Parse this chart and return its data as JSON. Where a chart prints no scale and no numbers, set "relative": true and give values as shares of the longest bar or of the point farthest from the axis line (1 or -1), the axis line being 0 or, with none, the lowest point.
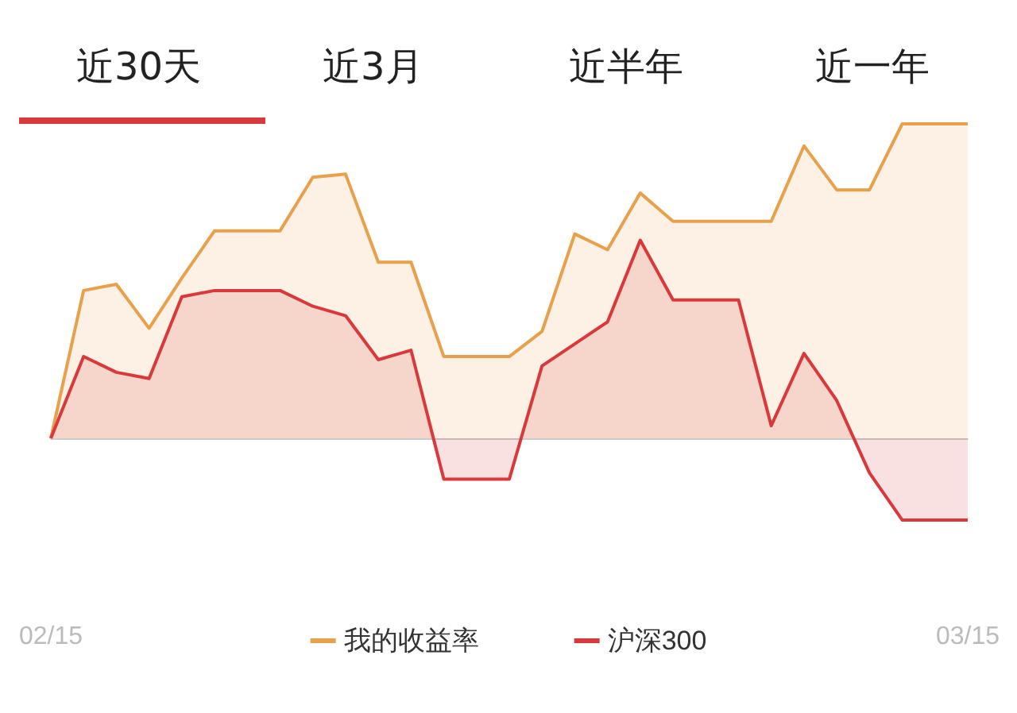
{
  "chart_data": {
    "type": "area",
    "relative": true,
    "annotations": [
      "近30天",
      "近3月",
      "近半年",
      "近一年"
    ],
    "categories": [
      "02/15",
      null,
      null,
      null,
      null,
      null,
      null,
      null,
      null,
      null,
      null,
      null,
      null,
      null,
      null,
      null,
      null,
      null,
      null,
      null,
      null,
      null,
      null,
      null,
      null,
      null,
      null,
      null,
      "03/15"
    ],
    "series": [
      {
        "name": "我的收益率",
        "color": "#e8a04a",
        "values": [
          0,
          0.47,
          0.49,
          0.35,
          0.51,
          0.66,
          0.66,
          0.66,
          0.83,
          0.84,
          0.56,
          0.56,
          0.26,
          0.26,
          0.26,
          0.34,
          0.65,
          0.6,
          0.78,
          0.69,
          0.69,
          0.69,
          0.69,
          0.93,
          0.79,
          0.79,
          1,
          1,
          1
        ]
      },
      {
        "name": "沪深300",
        "color": "#d9393a",
        "values": [
          0,
          0.26,
          0.21,
          0.19,
          0.45,
          0.47,
          0.47,
          0.47,
          0.42,
          0.39,
          0.25,
          0.28,
          -0.13,
          -0.13,
          -0.13,
          0.23,
          0.3,
          0.37,
          0.63,
          0.44,
          0.44,
          0.44,
          0.04,
          0.27,
          0.12,
          -0.11,
          -0.26,
          -0.26,
          -0.26
        ]
      }
    ],
    "legend": "bottom",
    "marker": "none",
    "line_style": "solid"
  }
}
